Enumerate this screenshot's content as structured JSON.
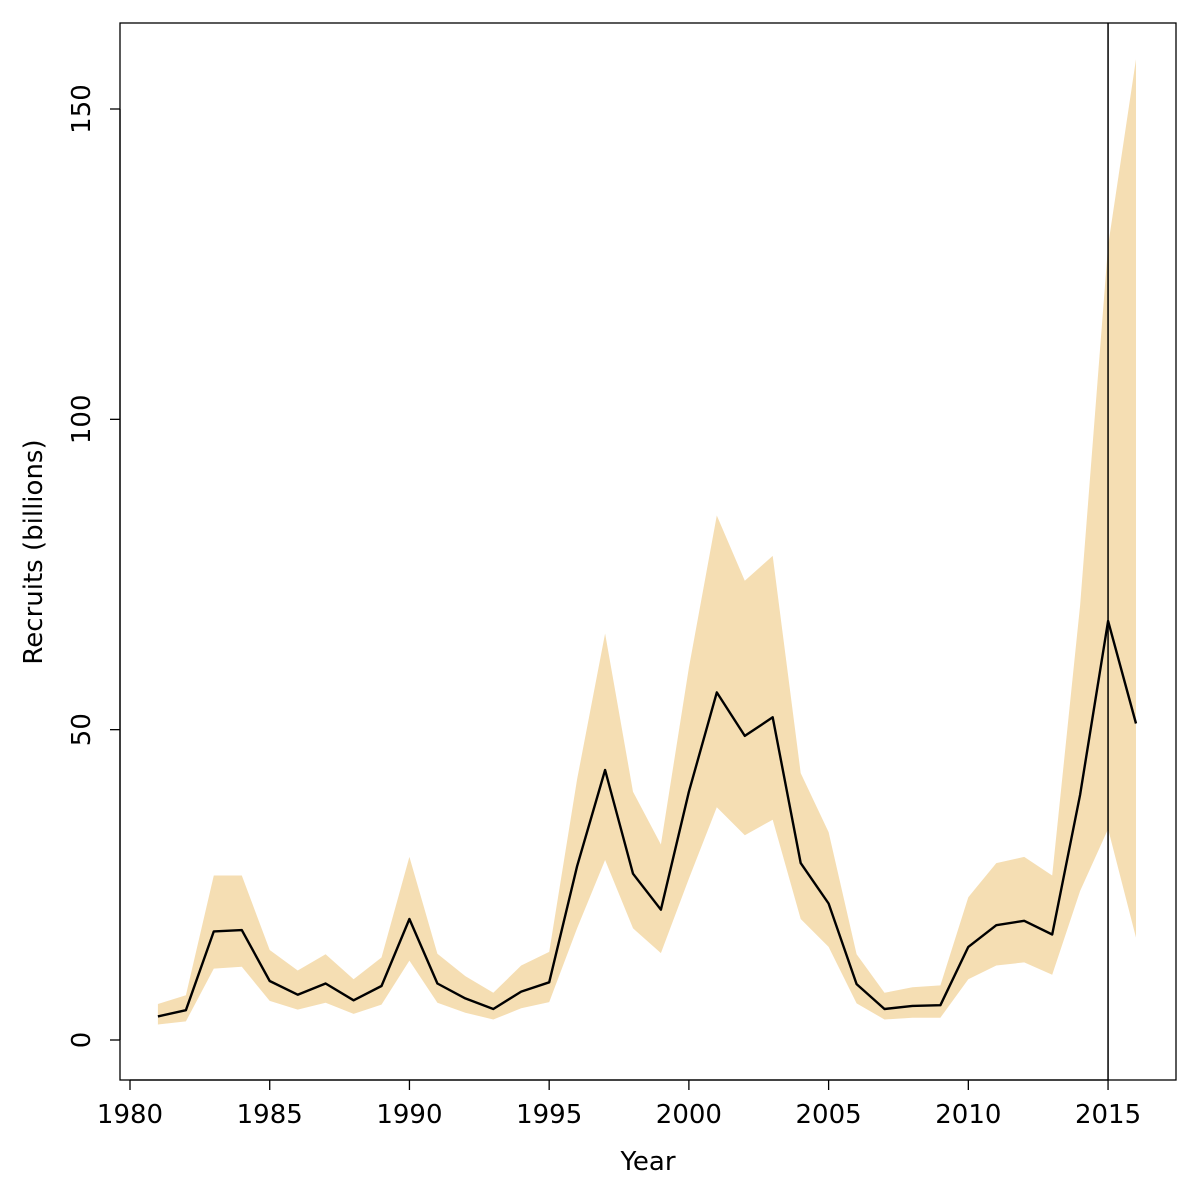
{
  "chart_data": {
    "type": "line",
    "title": "",
    "xlabel": "Year",
    "ylabel": "Recruits (billions)",
    "xlim": [
      1980,
      2017
    ],
    "ylim": [
      -6,
      163
    ],
    "x_ticks": [
      "1980",
      "1985",
      "1990",
      "1995",
      "2000",
      "2005",
      "2010",
      "2015"
    ],
    "y_ticks": [
      "0",
      "50",
      "100",
      "150"
    ],
    "reference_line_x": 2015,
    "colors": {
      "band": "#F5DEB3",
      "line": "#000000",
      "reference": "#000000"
    },
    "x": [
      1981,
      1982,
      1983,
      1984,
      1985,
      1986,
      1987,
      1988,
      1989,
      1990,
      1991,
      1992,
      1993,
      1994,
      1995,
      1996,
      1997,
      1998,
      1999,
      2000,
      2001,
      2002,
      2003,
      2004,
      2005,
      2006,
      2007,
      2008,
      2009,
      2010,
      2011,
      2012,
      2013,
      2014,
      2015,
      2016
    ],
    "series": [
      {
        "name": "Recruits",
        "values": [
          3.8,
          4.8,
          17.5,
          17.7,
          9.5,
          7.3,
          9.1,
          6.4,
          8.7,
          19.5,
          9.1,
          6.7,
          5.0,
          7.8,
          9.3,
          28.0,
          43.5,
          26.8,
          21.0,
          40.0,
          56.0,
          49.0,
          52.0,
          28.5,
          22.0,
          9.0,
          5.0,
          5.5,
          5.6,
          15.0,
          18.5,
          19.2,
          17.0,
          39.5,
          67.5,
          51.0
        ]
      },
      {
        "name": "Lower bound",
        "values": [
          2.5,
          3.0,
          11.5,
          11.8,
          6.3,
          4.9,
          6.0,
          4.2,
          5.7,
          12.8,
          6.0,
          4.4,
          3.3,
          5.1,
          6.1,
          18.0,
          29.0,
          18.0,
          14.0,
          26.0,
          37.5,
          33.0,
          35.5,
          19.5,
          15.0,
          5.9,
          3.3,
          3.6,
          3.6,
          9.8,
          12.0,
          12.5,
          10.5,
          24.0,
          34.0,
          16.5
        ]
      },
      {
        "name": "Upper bound",
        "values": [
          5.8,
          7.2,
          26.5,
          26.5,
          14.5,
          11.2,
          13.8,
          9.8,
          13.3,
          29.5,
          13.9,
          10.3,
          7.6,
          12.0,
          14.2,
          42.0,
          65.5,
          40.0,
          31.5,
          60.0,
          84.5,
          74.0,
          78.0,
          43.0,
          33.5,
          13.8,
          7.6,
          8.5,
          8.8,
          23.0,
          28.5,
          29.5,
          26.5,
          70.0,
          128.0,
          158.0
        ]
      }
    ]
  }
}
